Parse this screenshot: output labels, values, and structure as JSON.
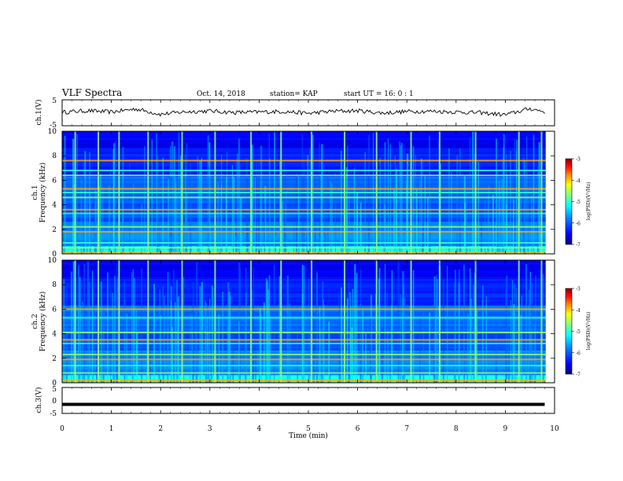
{
  "header": {
    "title": "VLF Spectra",
    "date": "Oct. 14, 2018",
    "station": "station= KAP",
    "start": "start  UT =   16: 0  : 1"
  },
  "colorbar": {
    "label": "log(PSD)(V²/Hz)",
    "ticks": [
      "-3",
      "-4",
      "-5",
      "-6",
      "-7"
    ],
    "colors": [
      "#000080",
      "#0000ff",
      "#0080ff",
      "#00ffff",
      "#80ff80",
      "#ffff00",
      "#ff8000",
      "#ff0000",
      "#800000"
    ]
  },
  "chart_data": [
    {
      "type": "line",
      "name": "ch1-waveform",
      "ylabel": "ch.1(V)",
      "ylim": [
        -5,
        5
      ],
      "y_ticks": [
        "5",
        "-5"
      ],
      "xlim": [
        0,
        10
      ],
      "note_x": [
        0.0,
        0.5,
        1.0,
        1.5,
        2.0,
        2.5,
        3.0,
        3.5,
        4.0,
        4.5,
        5.0,
        5.5,
        6.0,
        6.5,
        7.0,
        7.5,
        8.0,
        8.5,
        9.0,
        9.5,
        9.8
      ],
      "y": [
        0.2,
        0.8,
        0.3,
        1.5,
        -0.6,
        0.4,
        0.7,
        0.1,
        0.3,
        0.5,
        -0.2,
        0.6,
        0.8,
        -0.1,
        0.5,
        0.6,
        0.3,
        0.0,
        -0.8,
        1.6,
        0.4
      ]
    },
    {
      "type": "heatmap",
      "name": "ch1-spectrogram",
      "ylabel": "ch.1",
      "ylabel2": "Frequency  (kHz)",
      "ylim": [
        0,
        10
      ],
      "y_ticks": [
        "0",
        "2",
        "4",
        "6",
        "8",
        "10"
      ],
      "xlim": [
        0,
        10
      ],
      "value_range": [
        -7,
        -3
      ],
      "bands_khz": [
        0.1,
        0.5,
        0.9,
        1.8,
        2.2,
        3.3,
        3.6,
        4.6,
        5.0,
        5.3,
        6.4,
        6.8,
        7.6
      ],
      "impulses_min": [
        0.25,
        0.72,
        1.14,
        1.73,
        2.42,
        3.09,
        3.82,
        4.43,
        5.05,
        5.72,
        6.37,
        7.07,
        7.65,
        8.38,
        9.26,
        9.72
      ]
    },
    {
      "type": "heatmap",
      "name": "ch2-spectrogram",
      "ylabel": "ch.2",
      "ylabel2": "Frequency  (kHz)",
      "ylim": [
        0,
        10
      ],
      "y_ticks": [
        "0",
        "2",
        "4",
        "6",
        "8",
        "10"
      ],
      "xlim": [
        0,
        10
      ],
      "value_range": [
        -7,
        -3
      ],
      "bands_khz": [
        0.2,
        0.8,
        1.4,
        1.9,
        2.3,
        3.2,
        3.5,
        4.1,
        5.3,
        6.0
      ],
      "impulses_min": [
        0.25,
        0.72,
        1.14,
        1.73,
        2.42,
        3.09,
        3.82,
        4.43,
        5.05,
        5.72,
        6.37,
        7.07,
        7.65,
        8.38,
        9.26,
        9.72
      ]
    },
    {
      "type": "line",
      "name": "ch3-waveform",
      "ylabel": "ch.3(V)",
      "ylim": [
        -5,
        5
      ],
      "y_ticks": [
        "5",
        "0",
        "-5"
      ],
      "xlim": [
        0,
        10
      ],
      "x": [
        0,
        9.8
      ],
      "y": [
        -1.5,
        -1.5
      ]
    }
  ],
  "xaxis": {
    "label": "Time  (min)",
    "ticks": [
      "0",
      "1",
      "2",
      "3",
      "4",
      "5",
      "6",
      "7",
      "8",
      "9",
      "10"
    ]
  }
}
